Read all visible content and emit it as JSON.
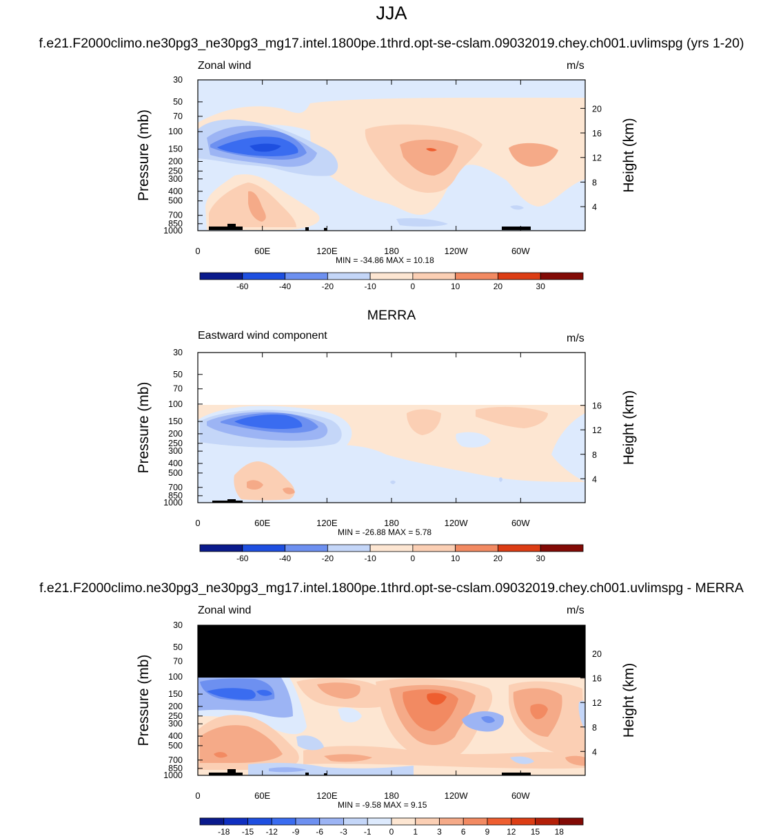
{
  "title": "JJA",
  "case_title": "f.e21.F2000climo.ne30pg3_ne30pg3_mg17.intel.1800pe.1thrd.opt-se-cslam.09032019.chey.ch001.uvlimspg (yrs 1-20)",
  "merra_title": "MERRA",
  "diff_title": "f.e21.F2000climo.ne30pg3_ne30pg3_mg17.intel.1800pe.1thrd.opt-se-cslam.09032019.chey.ch001.uvlimspg - MERRA",
  "colors": {
    "palette": [
      "#0a1a8c",
      "#0f2fc0",
      "#1e4fe0",
      "#3a6cf0",
      "#6d90f0",
      "#9cb4f4",
      "#c4d6f8",
      "#ddeafd",
      "#fde6d2",
      "#fbcfb4",
      "#f5aa88",
      "#f28a62",
      "#ee5e30",
      "#dc3d14",
      "#b31f08",
      "#820a05"
    ],
    "land": "#000000",
    "missing": "#000000"
  },
  "chart_data": [
    {
      "type": "heatmap",
      "panel": "model",
      "left_label": "Zonal wind",
      "units": "m/s",
      "ylabel": "Pressure (mb)",
      "y2label": "Height (km)",
      "x_ticks": [
        "0",
        "60E",
        "120E",
        "180",
        "120W",
        "60W"
      ],
      "y_ticks": [
        "30",
        "50",
        "70",
        "100",
        "150",
        "200",
        "250",
        "300",
        "400",
        "500",
        "700",
        "850",
        "1000"
      ],
      "y2_ticks": [
        "20",
        "16",
        "12",
        "8",
        "4"
      ],
      "min_label": "MIN = -34.86  MAX =  10.18",
      "min": -34.86,
      "max": 10.18,
      "colorbar_labels": [
        "-60",
        "-40",
        "-20",
        "-10",
        "0",
        "10",
        "20",
        "30"
      ]
    },
    {
      "type": "heatmap",
      "panel": "merra",
      "left_label": "Eastward wind component",
      "units": "m/s",
      "ylabel": "Pressure (mb)",
      "y2label": "Height (km)",
      "x_ticks": [
        "0",
        "60E",
        "120E",
        "180",
        "120W",
        "60W"
      ],
      "y_ticks": [
        "30",
        "50",
        "70",
        "100",
        "150",
        "200",
        "250",
        "300",
        "400",
        "500",
        "700",
        "850",
        "1000"
      ],
      "y2_ticks": [
        "16",
        "12",
        "8",
        "4"
      ],
      "min_label": "MIN = -26.88  MAX =   5.78",
      "min": -26.88,
      "max": 5.78,
      "colorbar_labels": [
        "-60",
        "-40",
        "-20",
        "-10",
        "0",
        "10",
        "20",
        "30"
      ]
    },
    {
      "type": "heatmap",
      "panel": "difference",
      "left_label": "Zonal wind",
      "units": "m/s",
      "ylabel": "Pressure (mb)",
      "y2label": "Height (km)",
      "x_ticks": [
        "0",
        "60E",
        "120E",
        "180",
        "120W",
        "60W"
      ],
      "y_ticks": [
        "30",
        "50",
        "70",
        "100",
        "150",
        "200",
        "250",
        "300",
        "400",
        "500",
        "700",
        "850",
        "1000"
      ],
      "y2_ticks": [
        "20",
        "16",
        "12",
        "8",
        "4"
      ],
      "min_label": "MIN =  -9.58  MAX =   9.15",
      "min": -9.58,
      "max": 9.15,
      "colorbar_labels": [
        "-18",
        "-15",
        "-12",
        "-9",
        "-6",
        "-3",
        "-1",
        "0",
        "1",
        "3",
        "6",
        "9",
        "12",
        "15",
        "18"
      ]
    }
  ]
}
